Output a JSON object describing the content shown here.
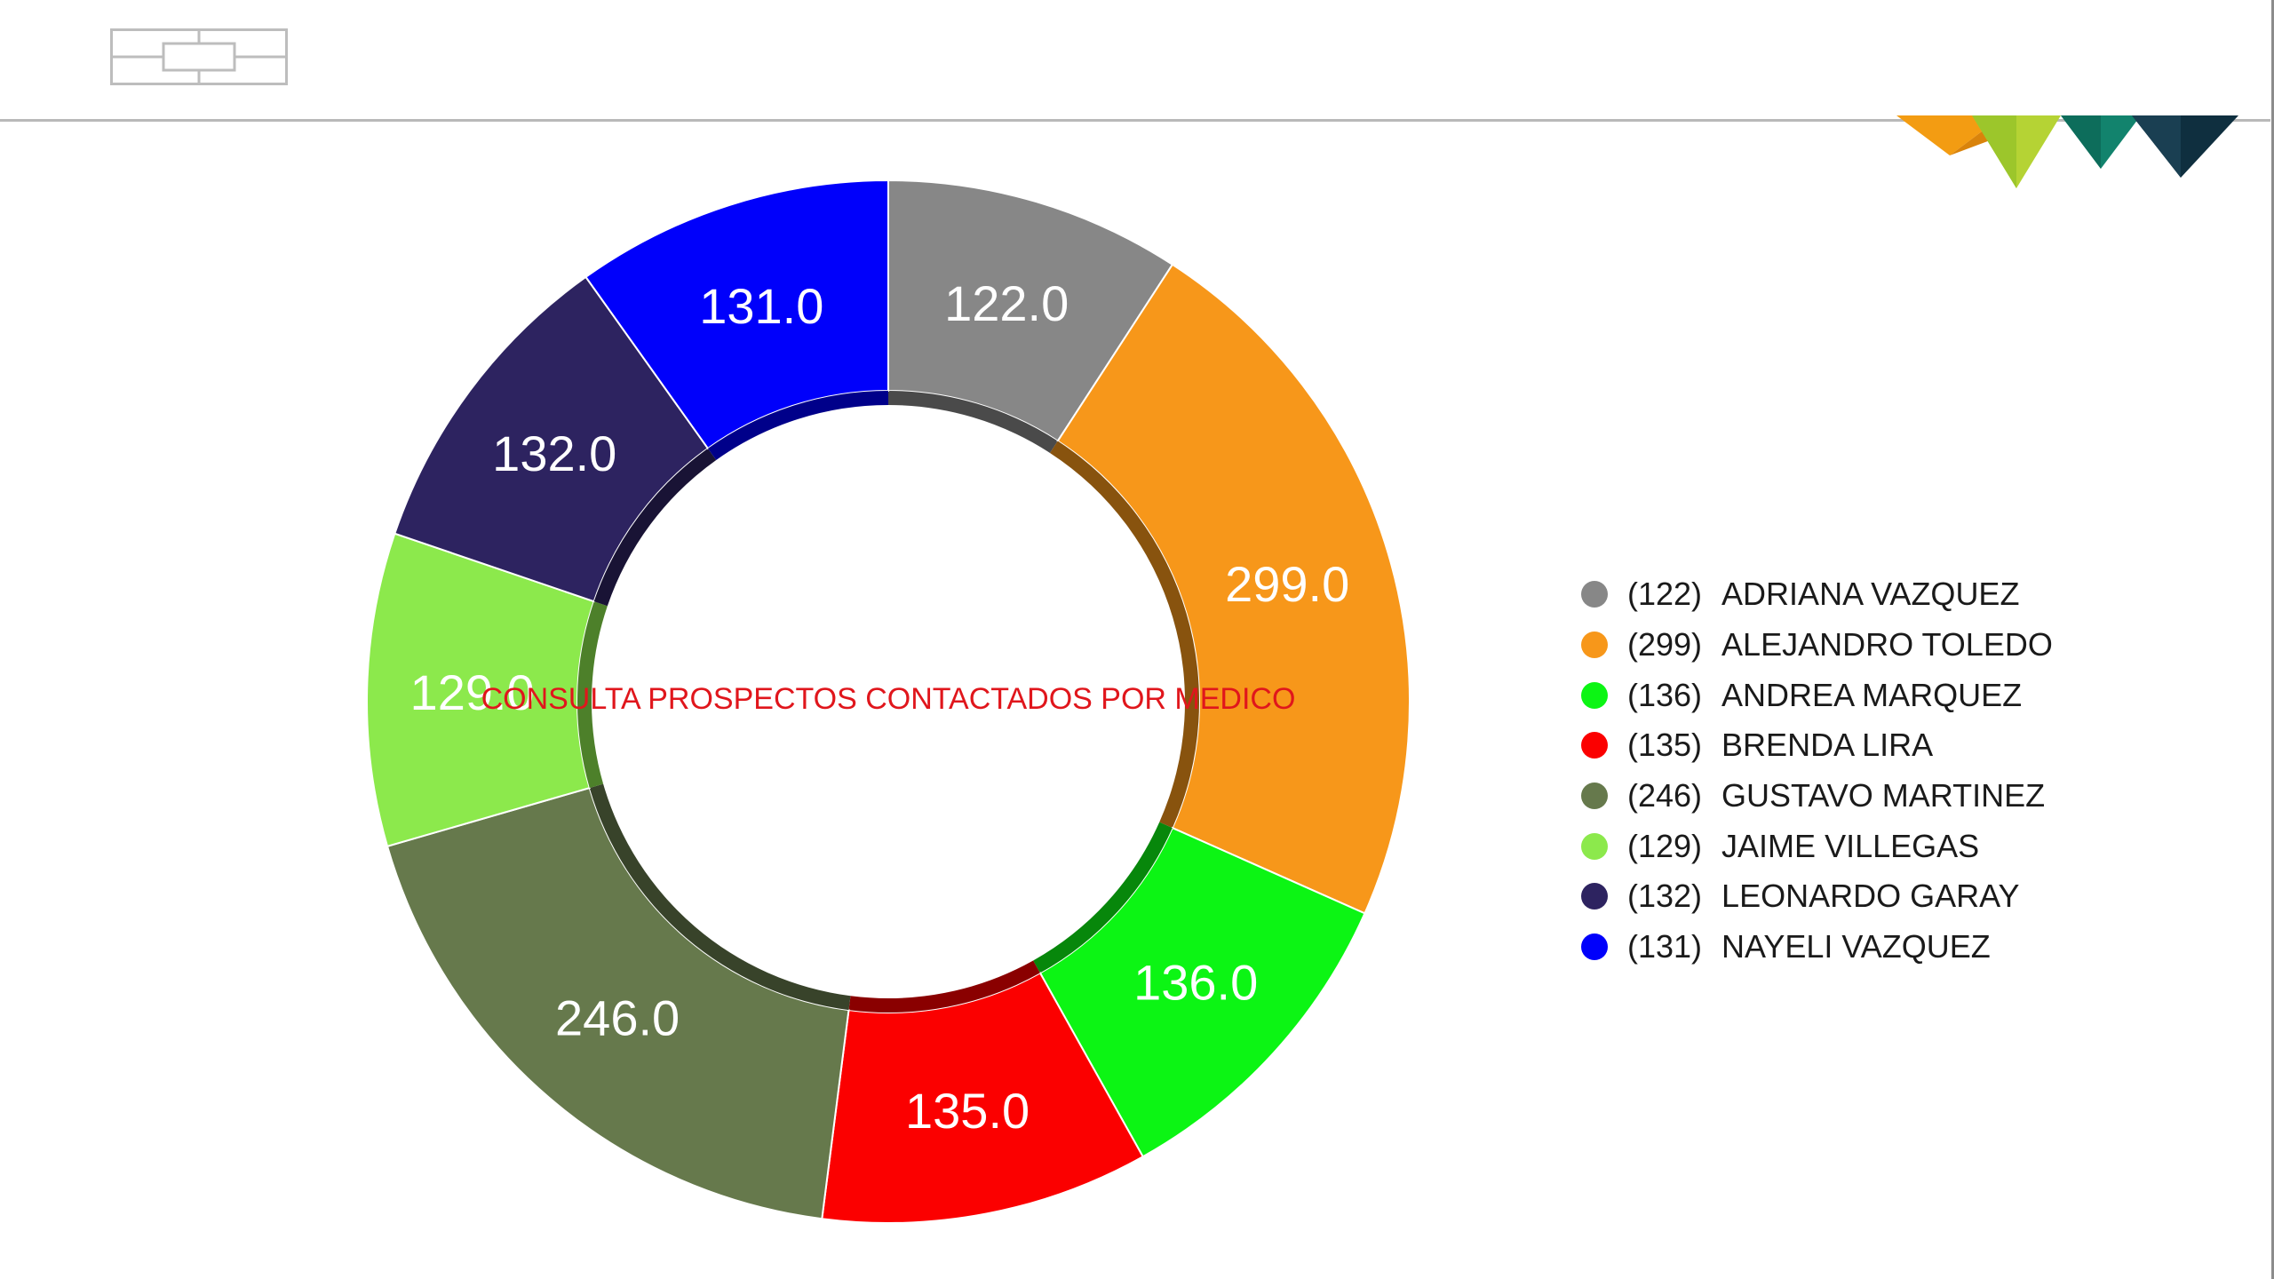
{
  "colors": {
    "center_title": "#e0161c",
    "slice_label": "#ffffff",
    "header_rule": "#b9b9b9"
  },
  "logo": {
    "icon": "grid-logo-icon"
  },
  "corner_decoration": {
    "icon": "triangle-banner-icon",
    "colors": [
      "#f39c12",
      "#b5d334",
      "#12836d",
      "#0f2f3f"
    ]
  },
  "chart_data": {
    "type": "pie",
    "variant": "donut",
    "title": "CONSULTA PROSPECTOS CONTACTADOS POR MEDICO",
    "legend_position": "right",
    "slices": [
      {
        "name": "ADRIANA VAZQUEZ",
        "value": 122,
        "label": "122.0",
        "legend_count": "(122)",
        "color": "#878787"
      },
      {
        "name": "ALEJANDRO TOLEDO",
        "value": 299,
        "label": "299.0",
        "legend_count": "(299)",
        "color": "#f7971a"
      },
      {
        "name": "ANDREA MARQUEZ",
        "value": 136,
        "label": "136.0",
        "legend_count": "(136)",
        "color": "#0cf514"
      },
      {
        "name": "BRENDA LIRA",
        "value": 135,
        "label": "135.0",
        "legend_count": "(135)",
        "color": "#fb0000"
      },
      {
        "name": "GUSTAVO MARTINEZ",
        "value": 246,
        "label": "246.0",
        "legend_count": "(246)",
        "color": "#66794c"
      },
      {
        "name": "JAIME VILLEGAS",
        "value": 129,
        "label": "129.0",
        "legend_count": "(129)",
        "color": "#8ce94c"
      },
      {
        "name": "LEONARDO GARAY",
        "value": 132,
        "label": "132.0",
        "legend_count": "(132)",
        "color": "#2d2360"
      },
      {
        "name": "NAYELI VAZQUEZ",
        "value": 131,
        "label": "131.0",
        "legend_count": "(131)",
        "color": "#0000fb"
      }
    ]
  }
}
